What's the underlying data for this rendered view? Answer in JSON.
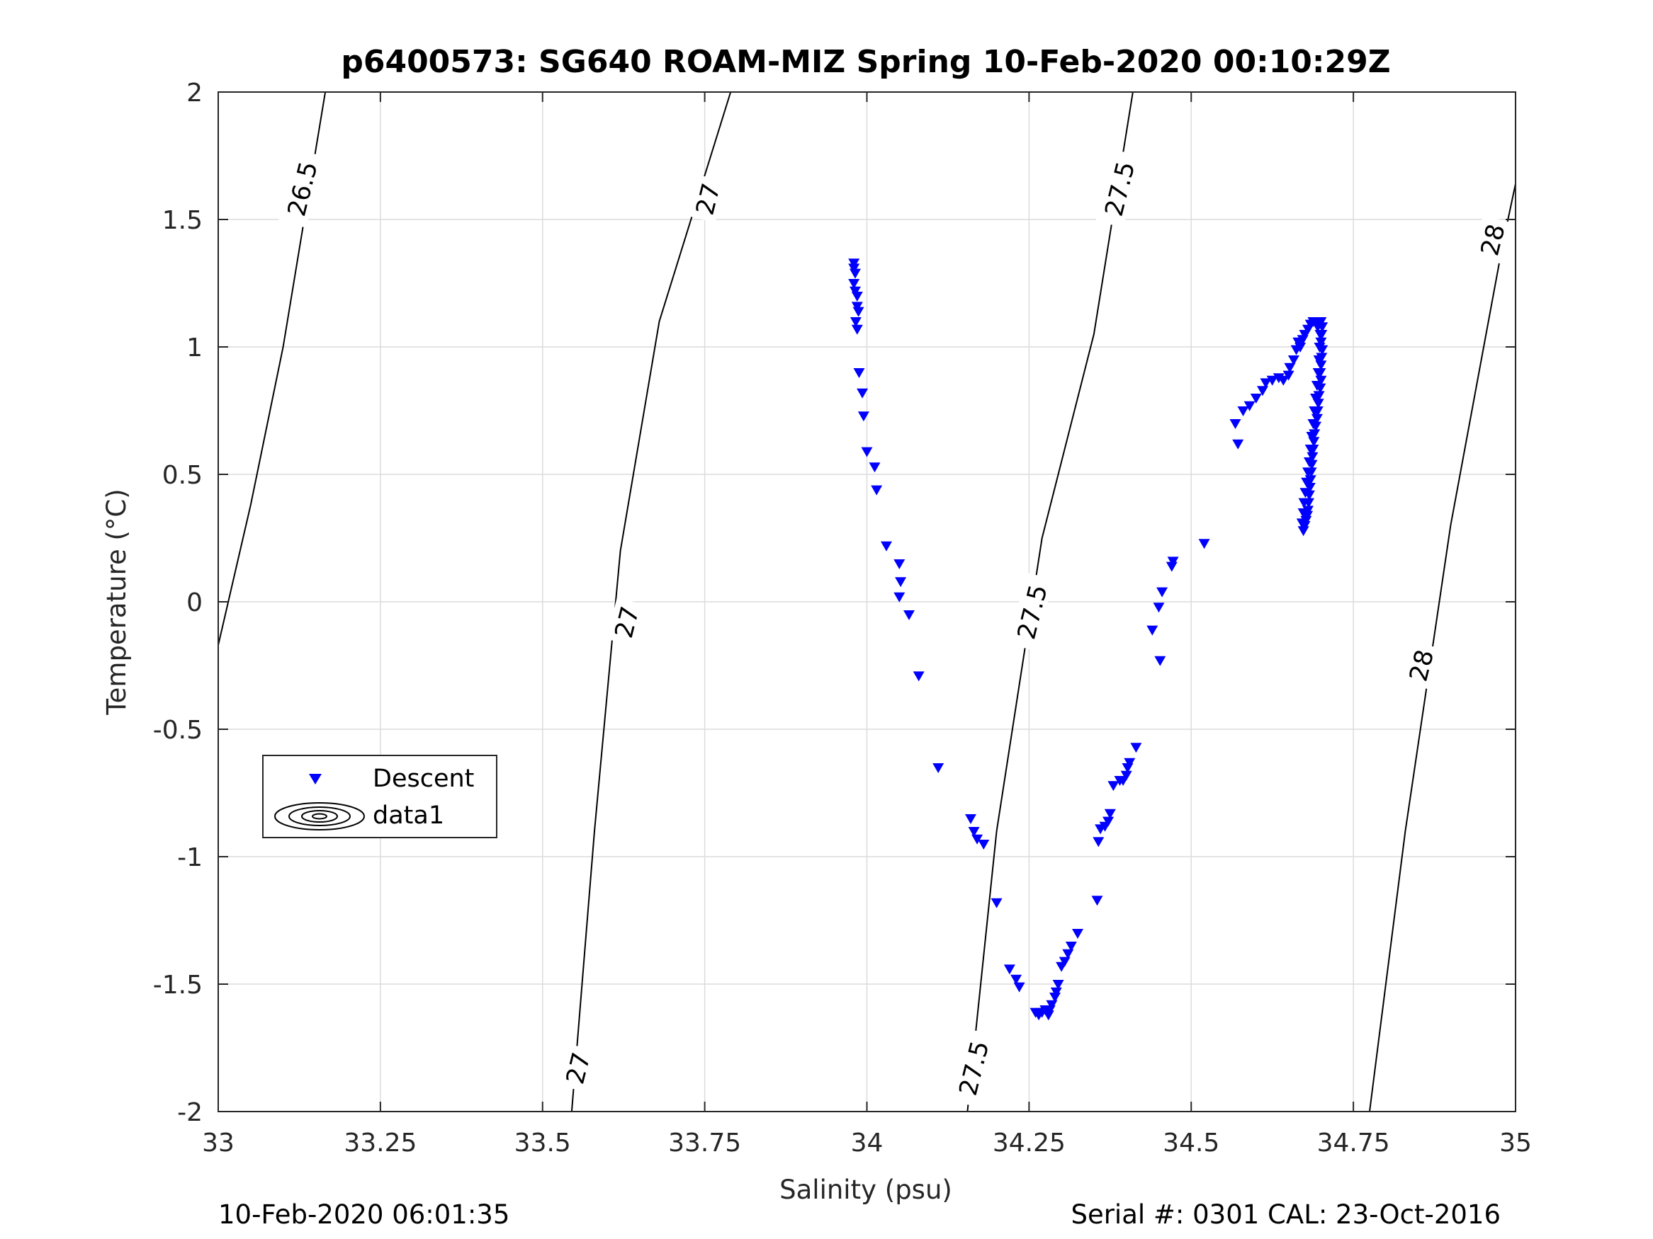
{
  "chart_data": {
    "type": "scatter",
    "title": "p6400573: SG640 ROAM-MIZ Spring 10-Feb-2020 00:10:29Z",
    "xlabel": "Salinity (psu)",
    "ylabel": "Temperature (°C)",
    "xlim": [
      33,
      35
    ],
    "ylim": [
      -2,
      2
    ],
    "xticks": [
      "33",
      "33.25",
      "33.5",
      "33.75",
      "34",
      "34.25",
      "34.5",
      "34.75",
      "35"
    ],
    "yticks": [
      "-2",
      "-1.5",
      "-1",
      "-0.5",
      "0",
      "0.5",
      "1",
      "1.5",
      "2"
    ],
    "grid": true,
    "legend": {
      "placement": "middle-left",
      "entries": [
        "Descent",
        "data1"
      ]
    },
    "footer_left": "10-Feb-2020 06:01:35",
    "footer_right": "Serial #: 0301  CAL: 23-Oct-2016",
    "contours": [
      {
        "level": "26.5",
        "points": [
          [
            33.0,
            -0.17
          ],
          [
            33.05,
            0.38
          ],
          [
            33.1,
            1.0
          ],
          [
            33.165,
            2.0
          ]
        ]
      },
      {
        "level": "27",
        "points": [
          [
            33.545,
            -2.0
          ],
          [
            33.58,
            -0.9
          ],
          [
            33.62,
            0.2
          ],
          [
            33.68,
            1.1
          ],
          [
            33.79,
            2.0
          ]
        ]
      },
      {
        "level": "27.5",
        "points": [
          [
            34.155,
            -2.0
          ],
          [
            34.2,
            -0.9
          ],
          [
            34.27,
            0.25
          ],
          [
            34.35,
            1.05
          ],
          [
            34.41,
            2.0
          ]
        ]
      },
      {
        "level": "28",
        "points": [
          [
            34.775,
            -2.0
          ],
          [
            34.83,
            -0.9
          ],
          [
            34.9,
            0.3
          ],
          [
            34.98,
            1.4
          ],
          [
            35.0,
            1.64
          ]
        ]
      }
    ],
    "contour_labels": [
      {
        "text": "26.5",
        "x": 33.13,
        "y": 1.62
      },
      {
        "text": "27",
        "x": 33.755,
        "y": 1.58
      },
      {
        "text": "27",
        "x": 33.63,
        "y": -0.08
      },
      {
        "text": "27",
        "x": 33.555,
        "y": -1.83
      },
      {
        "text": "27.5",
        "x": 34.39,
        "y": 1.62
      },
      {
        "text": "27.5",
        "x": 34.255,
        "y": -0.04
      },
      {
        "text": "27.5",
        "x": 34.165,
        "y": -1.83
      },
      {
        "text": "28",
        "x": 34.965,
        "y": 1.42
      },
      {
        "text": "28",
        "x": 34.855,
        "y": -0.25
      }
    ],
    "series": [
      {
        "name": "Descent",
        "color": "#0000ff",
        "marker": "triangle-down",
        "points": [
          [
            33.98,
            1.33
          ],
          [
            33.98,
            1.31
          ],
          [
            33.982,
            1.29
          ],
          [
            33.98,
            1.25
          ],
          [
            33.982,
            1.22
          ],
          [
            33.985,
            1.2
          ],
          [
            33.985,
            1.16
          ],
          [
            33.987,
            1.14
          ],
          [
            33.983,
            1.1
          ],
          [
            33.985,
            1.07
          ],
          [
            33.988,
            0.9
          ],
          [
            33.993,
            0.82
          ],
          [
            33.995,
            0.73
          ],
          [
            34.0,
            0.59
          ],
          [
            34.012,
            0.53
          ],
          [
            34.015,
            0.44
          ],
          [
            34.03,
            0.22
          ],
          [
            34.05,
            0.15
          ],
          [
            34.052,
            0.08
          ],
          [
            34.05,
            0.02
          ],
          [
            34.065,
            -0.05
          ],
          [
            34.08,
            -0.29
          ],
          [
            34.11,
            -0.65
          ],
          [
            34.16,
            -0.85
          ],
          [
            34.165,
            -0.9
          ],
          [
            34.17,
            -0.93
          ],
          [
            34.18,
            -0.95
          ],
          [
            34.2,
            -1.18
          ],
          [
            34.22,
            -1.44
          ],
          [
            34.23,
            -1.48
          ],
          [
            34.235,
            -1.51
          ],
          [
            34.26,
            -1.61
          ],
          [
            34.265,
            -1.62
          ],
          [
            34.27,
            -1.61
          ],
          [
            34.275,
            -1.6
          ],
          [
            34.28,
            -1.62
          ],
          [
            34.282,
            -1.6
          ],
          [
            34.285,
            -1.58
          ],
          [
            34.29,
            -1.55
          ],
          [
            34.292,
            -1.53
          ],
          [
            34.295,
            -1.5
          ],
          [
            34.3,
            -1.43
          ],
          [
            34.305,
            -1.41
          ],
          [
            34.31,
            -1.38
          ],
          [
            34.315,
            -1.35
          ],
          [
            34.325,
            -1.3
          ],
          [
            34.355,
            -1.17
          ],
          [
            34.357,
            -0.94
          ],
          [
            34.36,
            -0.89
          ],
          [
            34.367,
            -0.88
          ],
          [
            34.372,
            -0.86
          ],
          [
            34.375,
            -0.83
          ],
          [
            34.38,
            -0.72
          ],
          [
            34.39,
            -0.7
          ],
          [
            34.395,
            -0.7
          ],
          [
            34.4,
            -0.68
          ],
          [
            34.402,
            -0.65
          ],
          [
            34.405,
            -0.63
          ],
          [
            34.415,
            -0.57
          ],
          [
            34.44,
            -0.11
          ],
          [
            34.45,
            -0.02
          ],
          [
            34.455,
            0.04
          ],
          [
            34.452,
            -0.23
          ],
          [
            34.47,
            0.14
          ],
          [
            34.472,
            0.16
          ],
          [
            34.52,
            0.23
          ],
          [
            34.568,
            0.7
          ],
          [
            34.572,
            0.62
          ],
          [
            34.58,
            0.75
          ],
          [
            34.59,
            0.77
          ],
          [
            34.6,
            0.8
          ],
          [
            34.61,
            0.83
          ],
          [
            34.615,
            0.86
          ],
          [
            34.625,
            0.87
          ],
          [
            34.635,
            0.88
          ],
          [
            34.642,
            0.87
          ],
          [
            34.65,
            0.89
          ],
          [
            34.652,
            0.92
          ],
          [
            34.658,
            0.95
          ],
          [
            34.662,
            0.99
          ],
          [
            34.665,
            1.02
          ],
          [
            34.668,
            1.0
          ],
          [
            34.672,
            1.03
          ],
          [
            34.675,
            1.05
          ],
          [
            34.68,
            1.07
          ],
          [
            34.684,
            1.09
          ],
          [
            34.688,
            1.1
          ],
          [
            34.692,
            1.1
          ],
          [
            34.696,
            1.1
          ],
          [
            34.7,
            1.1
          ],
          [
            34.702,
            1.08
          ],
          [
            34.701,
            1.05
          ],
          [
            34.7,
            1.02
          ],
          [
            34.702,
            0.99
          ],
          [
            34.701,
            0.96
          ],
          [
            34.7,
            0.93
          ],
          [
            34.699,
            0.9
          ],
          [
            34.7,
            0.87
          ],
          [
            34.699,
            0.84
          ],
          [
            34.697,
            0.81
          ],
          [
            34.696,
            0.78
          ],
          [
            34.695,
            0.75
          ],
          [
            34.694,
            0.72
          ],
          [
            34.692,
            0.69
          ],
          [
            34.69,
            0.66
          ],
          [
            34.689,
            0.63
          ],
          [
            34.688,
            0.6
          ],
          [
            34.687,
            0.57
          ],
          [
            34.686,
            0.54
          ],
          [
            34.685,
            0.51
          ],
          [
            34.684,
            0.48
          ],
          [
            34.683,
            0.45
          ],
          [
            34.682,
            0.42
          ],
          [
            34.681,
            0.39
          ],
          [
            34.68,
            0.36
          ],
          [
            34.679,
            0.34
          ],
          [
            34.677,
            0.32
          ],
          [
            34.675,
            0.3
          ],
          [
            34.673,
            0.28
          ],
          [
            34.671,
            0.31
          ],
          [
            34.673,
            0.35
          ],
          [
            34.674,
            0.39
          ],
          [
            34.676,
            0.43
          ],
          [
            34.678,
            0.47
          ],
          [
            34.68,
            0.51
          ],
          [
            34.682,
            0.55
          ],
          [
            34.684,
            0.6
          ],
          [
            34.686,
            0.65
          ],
          [
            34.688,
            0.7
          ],
          [
            34.69,
            0.75
          ],
          [
            34.692,
            0.8
          ],
          [
            34.694,
            0.85
          ],
          [
            34.696,
            0.9
          ],
          [
            34.697,
            0.95
          ],
          [
            34.698,
            1.0
          ],
          [
            34.699,
            1.05
          ],
          [
            34.695,
            1.08
          ]
        ]
      }
    ]
  }
}
